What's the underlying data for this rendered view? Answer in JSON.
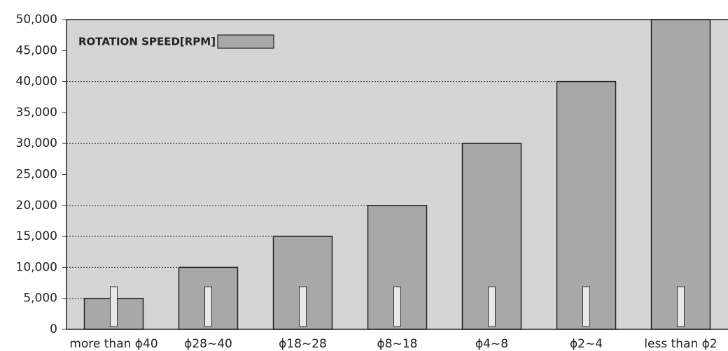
{
  "chart_data": {
    "type": "bar",
    "categories": [
      "more than ϕ40",
      "ϕ28~40",
      "ϕ18~28",
      "ϕ8~18",
      "ϕ4~8",
      "ϕ2~4",
      "less than ϕ2"
    ],
    "series": [
      {
        "name": "ROTATION SPEED[RPM]",
        "color": "#a8a8a8",
        "values": [
          5000,
          10000,
          15000,
          20000,
          30000,
          40000,
          50000
        ]
      }
    ],
    "ylim": [
      0,
      50000
    ],
    "yticks": [
      0,
      {
        "value": 5000,
        "label": "5,000"
      },
      {
        "value": 10000,
        "label": "10,000"
      },
      {
        "value": 15000,
        "label": "15,000"
      },
      {
        "value": 20000,
        "label": "20,000"
      },
      {
        "value": 25000,
        "label": "25,000"
      },
      {
        "value": 30000,
        "label": "30,000"
      },
      {
        "value": 35000,
        "label": "35,000"
      },
      {
        "value": 40000,
        "label": "40,000"
      },
      {
        "value": 45000,
        "label": "45,000"
      },
      {
        "value": 50000,
        "label": "50,000"
      }
    ],
    "legend": "top-left"
  }
}
